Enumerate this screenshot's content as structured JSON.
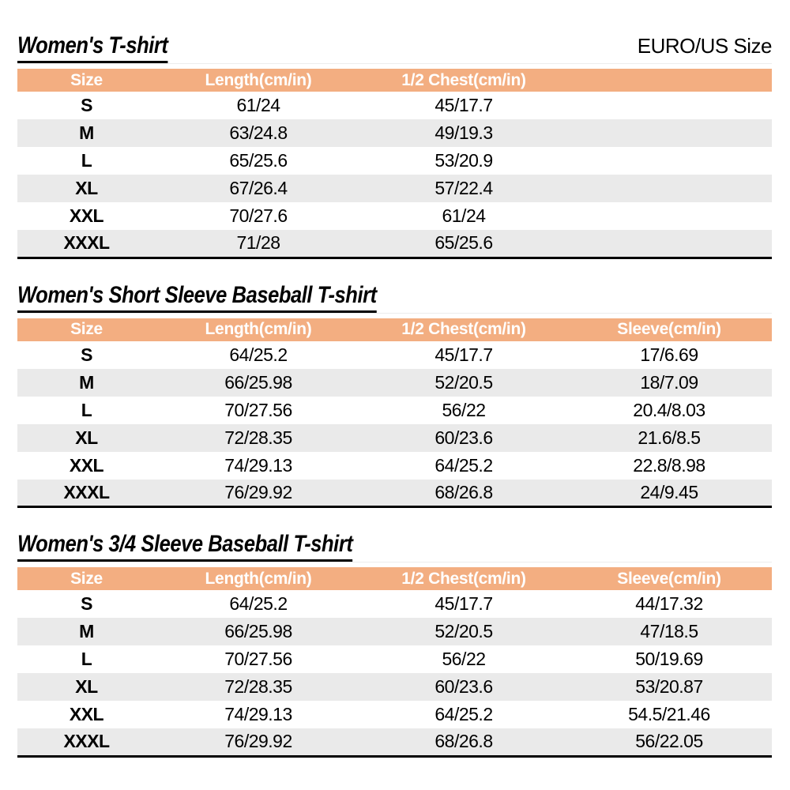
{
  "page": {
    "unit_label": "EURO/US Size"
  },
  "colors": {
    "page_bg": "#FFFFFF",
    "header_bg": "#F3AE81",
    "header_text": "#FFFFFF",
    "stripe_bg": "#EAEAEA",
    "text": "#000000",
    "table_border": "#000000",
    "title_rule": "#EDEDED"
  },
  "chart_data": [
    {
      "type": "table",
      "title": "Women's T-shirt",
      "columns": [
        "Size",
        "Length(cm/in)",
        "1/2 Chest(cm/in)"
      ],
      "rows": [
        [
          "S",
          "61/24",
          "45/17.7"
        ],
        [
          "M",
          "63/24.8",
          "49/19.3"
        ],
        [
          "L",
          "65/25.6",
          "53/20.9"
        ],
        [
          "XL",
          "67/26.4",
          "57/22.4"
        ],
        [
          "XXL",
          "70/27.6",
          "61/24"
        ],
        [
          "XXXL",
          "71/28",
          "65/25.6"
        ]
      ]
    },
    {
      "type": "table",
      "title": "Women's Short Sleeve Baseball T-shirt",
      "columns": [
        "Size",
        "Length(cm/in)",
        "1/2 Chest(cm/in)",
        "Sleeve(cm/in)"
      ],
      "rows": [
        [
          "S",
          "64/25.2",
          "45/17.7",
          "17/6.69"
        ],
        [
          "M",
          "66/25.98",
          "52/20.5",
          "18/7.09"
        ],
        [
          "L",
          "70/27.56",
          "56/22",
          "20.4/8.03"
        ],
        [
          "XL",
          "72/28.35",
          "60/23.6",
          "21.6/8.5"
        ],
        [
          "XXL",
          "74/29.13",
          "64/25.2",
          "22.8/8.98"
        ],
        [
          "XXXL",
          "76/29.92",
          "68/26.8",
          "24/9.45"
        ]
      ]
    },
    {
      "type": "table",
      "title": "Women's 3/4 Sleeve Baseball T-shirt",
      "columns": [
        "Size",
        "Length(cm/in)",
        "1/2 Chest(cm/in)",
        "Sleeve(cm/in)"
      ],
      "rows": [
        [
          "S",
          "64/25.2",
          "45/17.7",
          "44/17.32"
        ],
        [
          "M",
          "66/25.98",
          "52/20.5",
          "47/18.5"
        ],
        [
          "L",
          "70/27.56",
          "56/22",
          "50/19.69"
        ],
        [
          "XL",
          "72/28.35",
          "60/23.6",
          "53/20.87"
        ],
        [
          "XXL",
          "74/29.13",
          "64/25.2",
          "54.5/21.46"
        ],
        [
          "XXXL",
          "76/29.92",
          "68/26.8",
          "56/22.05"
        ]
      ]
    }
  ]
}
